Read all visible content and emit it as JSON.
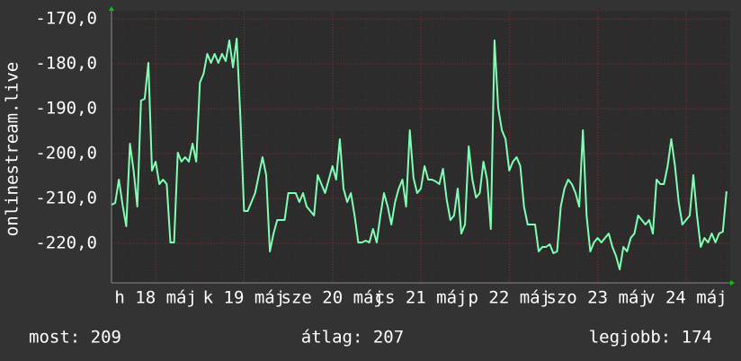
{
  "chart_data": {
    "type": "line",
    "y_label": "onlinestream.live",
    "x": [
      0,
      1,
      2,
      3,
      4,
      5,
      6,
      7,
      8,
      9,
      10,
      11,
      12,
      13,
      14,
      15,
      16,
      17,
      18,
      19,
      20,
      21,
      22,
      23,
      24,
      25,
      26,
      27,
      28,
      29,
      30,
      31,
      32,
      33,
      34,
      35,
      36,
      37,
      38,
      39,
      40,
      41,
      42,
      43,
      44,
      45,
      46,
      47,
      48,
      49,
      50,
      51,
      52,
      53,
      54,
      55,
      56,
      57,
      58,
      59,
      60,
      61,
      62,
      63,
      64,
      65,
      66,
      67,
      68,
      69,
      70,
      71,
      72,
      73,
      74,
      75,
      76,
      77,
      78,
      79,
      80,
      81,
      82,
      83,
      84,
      85,
      86,
      87,
      88,
      89,
      90,
      91,
      92,
      93,
      94,
      95,
      96,
      97,
      98,
      99,
      100,
      101,
      102,
      103,
      104,
      105,
      106,
      107,
      108,
      109,
      110,
      111,
      112,
      113,
      114,
      115,
      116,
      117,
      118,
      119,
      120,
      121,
      122,
      123,
      124,
      125,
      126,
      127,
      128,
      129,
      130,
      131,
      132,
      133,
      134,
      135,
      136,
      137,
      138,
      139,
      140,
      141,
      142,
      143,
      144,
      145,
      146,
      147,
      148,
      149,
      150,
      151,
      152,
      153,
      154,
      155,
      156,
      157,
      158,
      159,
      160,
      161,
      162,
      163,
      164,
      165,
      166,
      167
    ],
    "series": [
      {
        "color": "#80ffb4",
        "values": [
          -211.4,
          -211,
          -205.8,
          -211.4,
          -216.2,
          -197.8,
          -203.8,
          -211.8,
          -188.2,
          -187.8,
          -179.8,
          -203.8,
          -201.8,
          -206.8,
          -205.8,
          -206.8,
          -219.8,
          -219.8,
          -199.8,
          -201.8,
          -200.8,
          -201.8,
          -197.8,
          -201.8,
          -184.2,
          -182.2,
          -177.8,
          -179.8,
          -177.8,
          -179.8,
          -177.8,
          -179.4,
          -174.8,
          -180.8,
          -174.4,
          -191.8,
          -212.8,
          -212.8,
          -210.8,
          -208.8,
          -204.8,
          -200.8,
          -204.8,
          -221.8,
          -217.8,
          -214.8,
          -214.8,
          -214.8,
          -208.8,
          -208.8,
          -208.8,
          -210.8,
          -208.8,
          -211.8,
          -212.8,
          -213.8,
          -204.8,
          -206.8,
          -208.8,
          -205.8,
          -202.8,
          -205.8,
          -196.8,
          -207.8,
          -210.8,
          -208.8,
          -213.8,
          -219.8,
          -219.8,
          -219.4,
          -219.8,
          -216.8,
          -219.8,
          -213.8,
          -208.8,
          -211.8,
          -215.8,
          -210.8,
          -207.8,
          -205.8,
          -211.8,
          -194.8,
          -205.4,
          -208.8,
          -207.8,
          -202.8,
          -205.8,
          -205.8,
          -206.2,
          -206.8,
          -203.4,
          -210.2,
          -214.8,
          -213.8,
          -207.8,
          -217.8,
          -215.8,
          -198.4,
          -205.8,
          -209.8,
          -208.8,
          -201.8,
          -205.8,
          -216.8,
          -174.8,
          -189.8,
          -194.8,
          -196.8,
          -203.8,
          -201.8,
          -200.8,
          -202.8,
          -211.8,
          -215.8,
          -215.8,
          -215.8,
          -221.8,
          -220.8,
          -220.8,
          -220.2,
          -222.2,
          -221.8,
          -211.8,
          -207.8,
          -205.8,
          -206.8,
          -208.8,
          -211.8,
          -194.8,
          -213.8,
          -221.8,
          -219.8,
          -218.8,
          -219.8,
          -218.8,
          -217.8,
          -220.8,
          -222.8,
          -225.8,
          -220.8,
          -221.8,
          -218.8,
          -217.8,
          -213.8,
          -214.8,
          -215.8,
          -214.8,
          -217.8,
          -205.8,
          -206.8,
          -206.8,
          -202.8,
          -196.8,
          -202.8,
          -210.8,
          -215.8,
          -214.8,
          -213.8,
          -204.8,
          -213.8,
          -220.8,
          -218.8,
          -219.8,
          -217.8,
          -219.8,
          -217.8,
          -217.4,
          -208.4
        ]
      }
    ],
    "xlim": [
      0,
      168
    ],
    "xticks": [
      {
        "value": 12,
        "label": "h 18 máj"
      },
      {
        "value": 36,
        "label": "k 19 máj"
      },
      {
        "value": 60,
        "label": "sze 20 máj"
      },
      {
        "value": 84,
        "label": "cs 21 máj"
      },
      {
        "value": 108,
        "label": "p 22 máj"
      },
      {
        "value": 132,
        "label": "szo 23 máj"
      },
      {
        "value": 156,
        "label": "v 24 máj"
      }
    ],
    "ylim": [
      -228.8,
      -168.2
    ],
    "yticks": [
      {
        "value": -170,
        "label": "-170,0"
      },
      {
        "value": -180,
        "label": "-180,0"
      },
      {
        "value": -190,
        "label": "-190,0"
      },
      {
        "value": -200,
        "label": "-200,0"
      },
      {
        "value": -210,
        "label": "-210,0"
      },
      {
        "value": -220,
        "label": "-220,0"
      }
    ],
    "grid": true,
    "footer": [
      "most: 209",
      "átlag: 207",
      "legjobb: 174"
    ]
  }
}
